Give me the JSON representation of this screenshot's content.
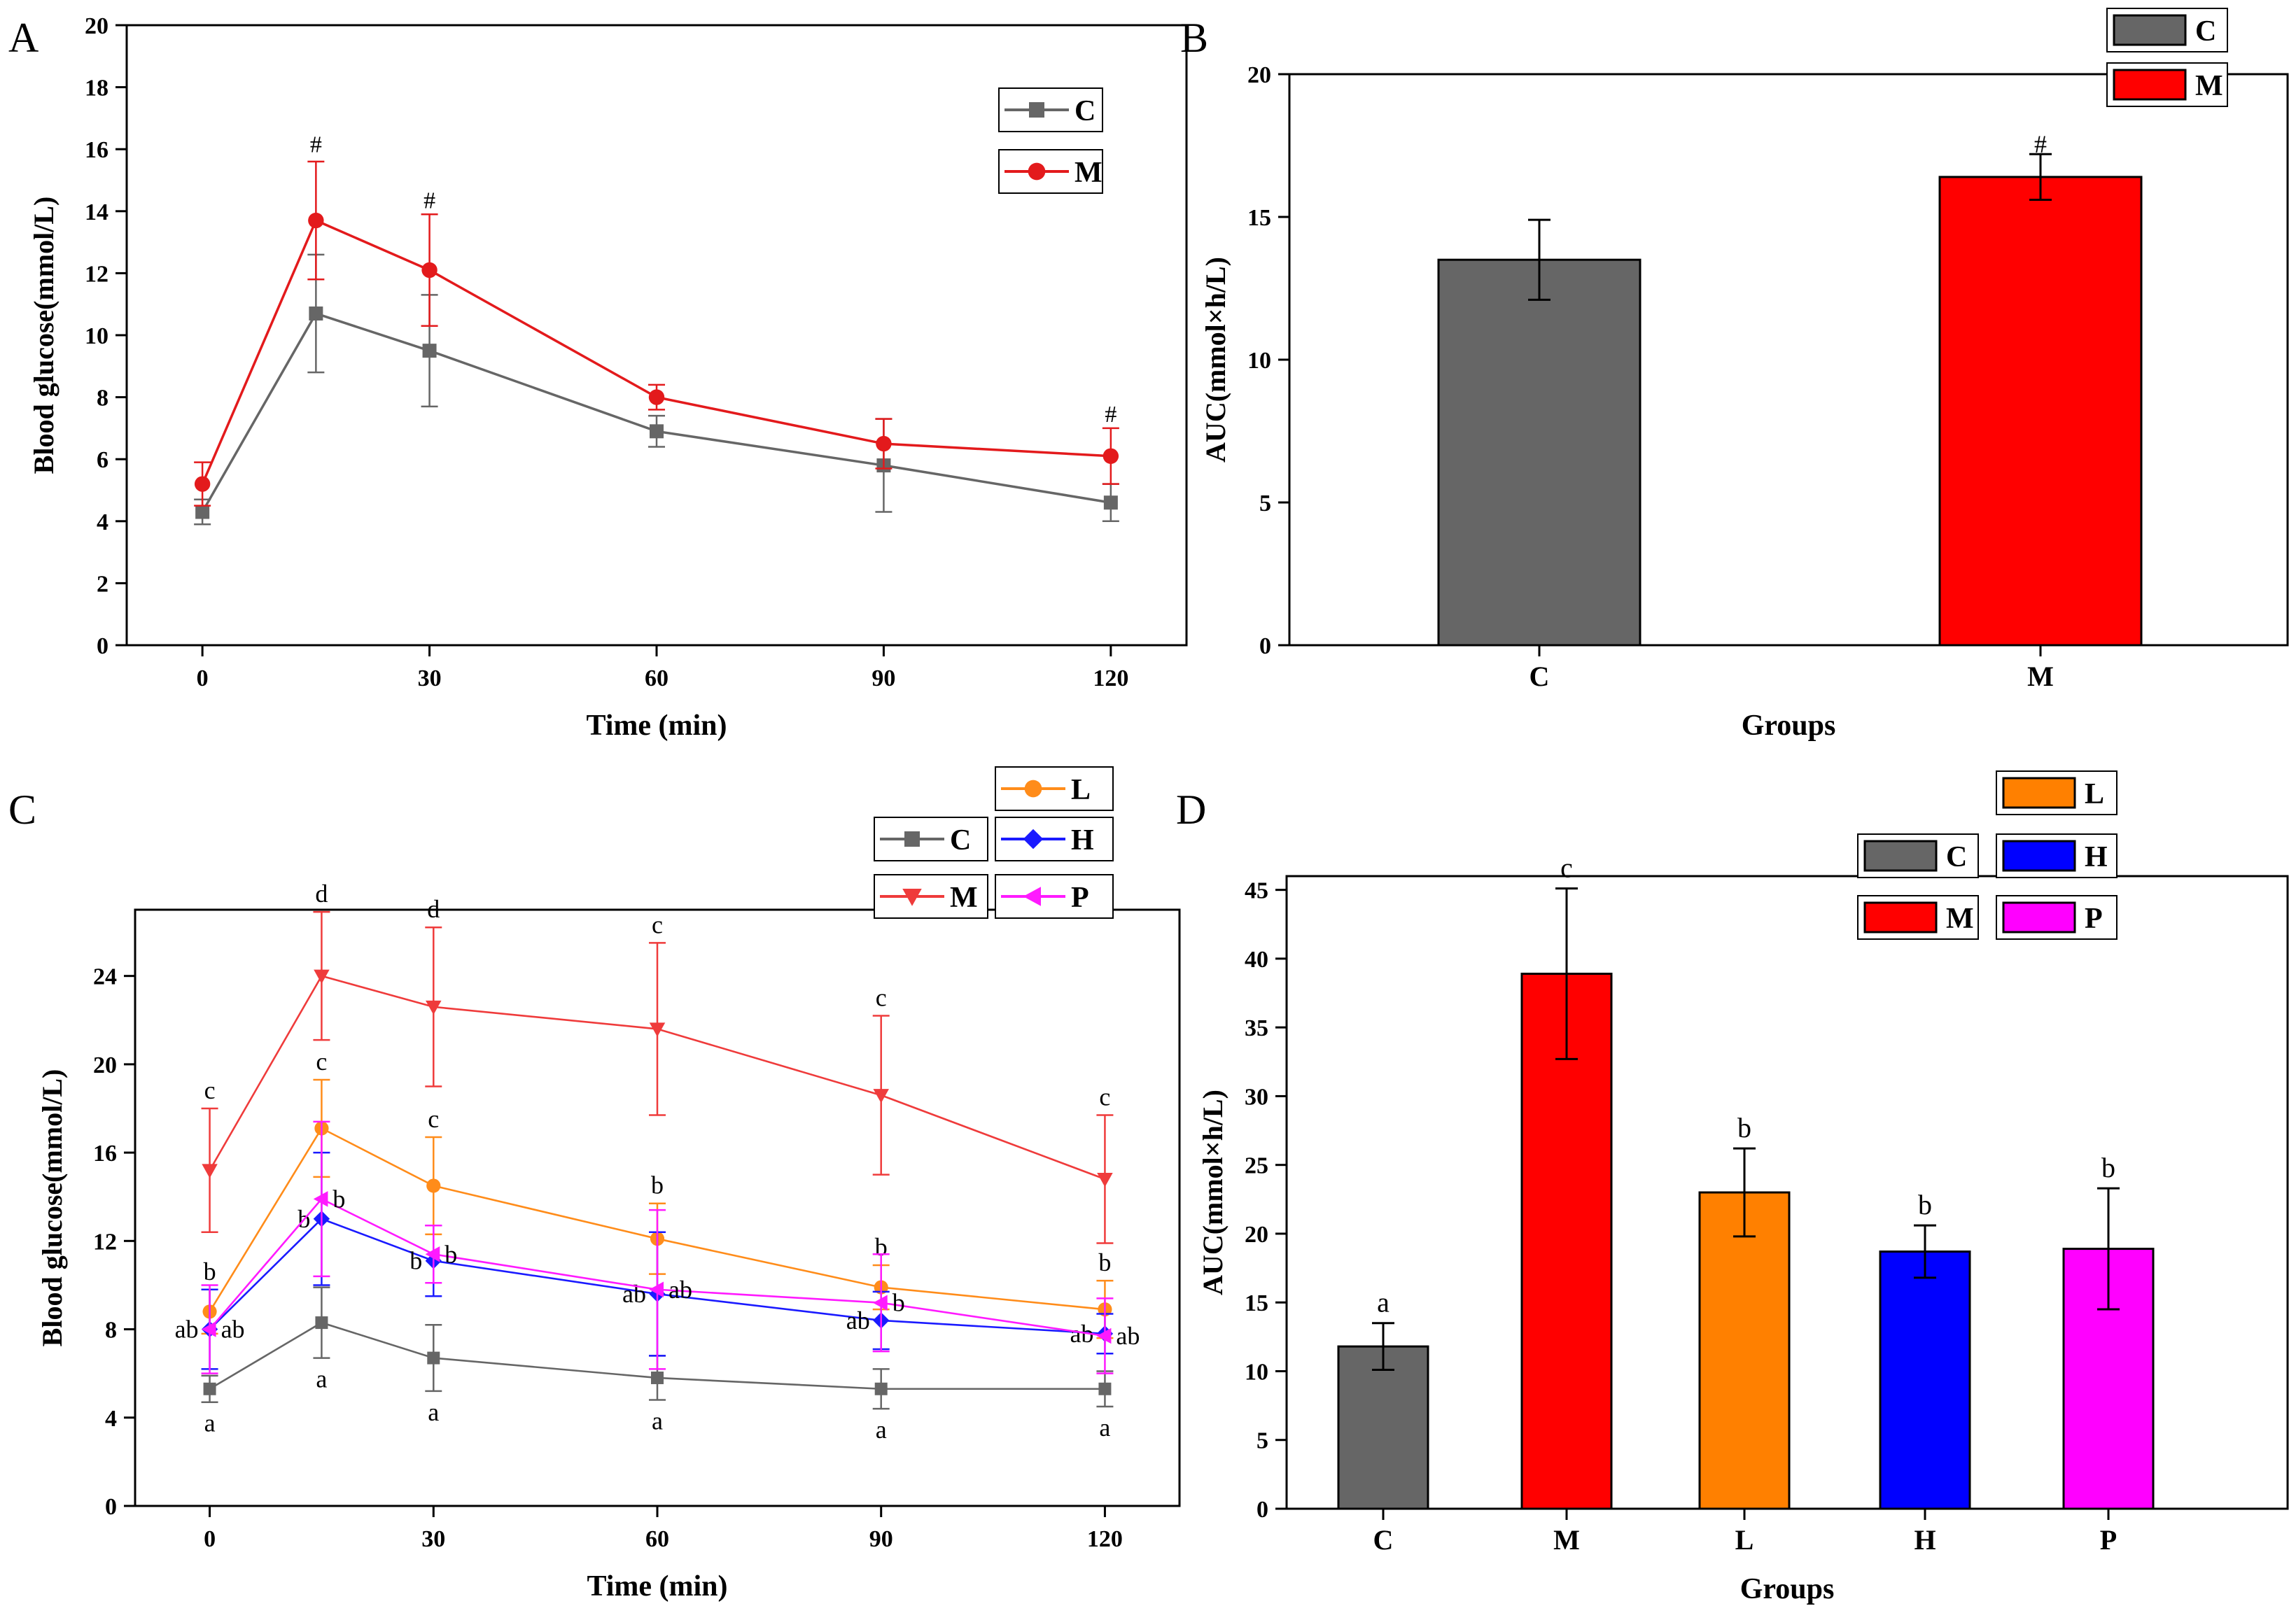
{
  "figure": {
    "panels": [
      "A",
      "B",
      "C",
      "D"
    ]
  },
  "chart_data": [
    {
      "panel": "A",
      "type": "line",
      "xlabel": "Time (min)",
      "ylabel": "Blood glucose(mmol/L)",
      "xlim": [
        -10,
        130
      ],
      "ylim": [
        0,
        20
      ],
      "xticks": [
        "0",
        "30",
        "60",
        "90",
        "120"
      ],
      "yticks": [
        "0",
        "2",
        "4",
        "6",
        "8",
        "10",
        "12",
        "14",
        "16",
        "18",
        "20"
      ],
      "x": [
        0,
        15,
        30,
        60,
        90,
        120
      ],
      "series": [
        {
          "name": "C",
          "color": "#666666",
          "marker": "square",
          "values": [
            4.3,
            10.7,
            9.5,
            6.9,
            5.8,
            4.6
          ],
          "errors": [
            0.4,
            1.9,
            1.8,
            0.5,
            1.5,
            0.6
          ]
        },
        {
          "name": "M",
          "color": "#e31a1c",
          "marker": "circle",
          "values": [
            5.2,
            13.7,
            12.1,
            8.0,
            6.5,
            6.1
          ],
          "errors": [
            0.7,
            1.9,
            1.8,
            0.4,
            0.8,
            0.9
          ]
        }
      ],
      "annotations": [
        {
          "x": 15,
          "y": 15.9,
          "text": "#"
        },
        {
          "x": 30,
          "y": 14.1,
          "text": "#"
        },
        {
          "x": 120,
          "y": 7.2,
          "text": "#"
        }
      ]
    },
    {
      "panel": "B",
      "type": "bar",
      "xlabel": "Groups",
      "ylabel": "AUC(mmol×h/L)",
      "ylim": [
        0,
        20
      ],
      "yticks": [
        "0",
        "5",
        "10",
        "15",
        "20"
      ],
      "categories": [
        "C",
        "M"
      ],
      "values": [
        13.5,
        16.4
      ],
      "errors": [
        1.4,
        0.8
      ],
      "colors": [
        "#666666",
        "#ff0000"
      ],
      "annotations": [
        {
          "category": "M",
          "text": "#"
        }
      ]
    },
    {
      "panel": "C",
      "type": "line",
      "xlabel": "Time (min)",
      "ylabel": "Blood glucose(mmol/L)",
      "xlim": [
        -10,
        130
      ],
      "ylim": [
        0,
        27
      ],
      "xticks": [
        "0",
        "30",
        "60",
        "90",
        "120"
      ],
      "yticks": [
        "0",
        "4",
        "8",
        "12",
        "16",
        "20",
        "24"
      ],
      "x": [
        0,
        15,
        30,
        60,
        90,
        120
      ],
      "series": [
        {
          "name": "C",
          "color": "#666666",
          "marker": "square",
          "values": [
            5.3,
            8.3,
            6.7,
            5.8,
            5.3,
            5.3
          ],
          "errors": [
            0.6,
            1.6,
            1.5,
            1.0,
            0.9,
            0.8
          ],
          "labels": [
            "a",
            "a",
            "a",
            "a",
            "a",
            "a"
          ],
          "label_pos": "below"
        },
        {
          "name": "M",
          "color": "#ef3b3b",
          "marker": "triangle-down",
          "values": [
            15.2,
            24.0,
            22.6,
            21.6,
            18.6,
            14.8
          ],
          "errors": [
            2.8,
            2.9,
            3.6,
            3.9,
            3.6,
            2.9
          ],
          "labels": [
            "c",
            "d",
            "d",
            "c",
            "c",
            "c"
          ],
          "label_pos": "above"
        },
        {
          "name": "L",
          "color": "#ff8c1a",
          "marker": "circle",
          "values": [
            8.8,
            17.1,
            14.5,
            12.1,
            9.9,
            8.9
          ],
          "errors": [
            1.0,
            2.2,
            2.2,
            1.6,
            1.0,
            1.3
          ],
          "labels": [
            "b",
            "c",
            "c",
            "b",
            "b",
            "b"
          ],
          "label_pos": "above"
        },
        {
          "name": "H",
          "color": "#1a1aff",
          "marker": "diamond",
          "values": [
            8.0,
            13.0,
            11.1,
            9.6,
            8.4,
            7.8
          ],
          "errors": [
            1.8,
            3.0,
            1.6,
            2.8,
            1.3,
            0.9
          ],
          "labels": [
            "ab",
            "b",
            "b",
            "ab",
            "ab",
            "ab"
          ],
          "label_pos": "left"
        },
        {
          "name": "P",
          "color": "#ff1aff",
          "marker": "triangle-left",
          "values": [
            8.0,
            13.9,
            11.4,
            9.8,
            9.2,
            7.7
          ],
          "errors": [
            2.0,
            3.5,
            1.3,
            3.6,
            2.2,
            1.7
          ],
          "labels": [
            "ab",
            "b",
            "b",
            "ab",
            "b",
            "ab"
          ],
          "label_pos": "right"
        }
      ]
    },
    {
      "panel": "D",
      "type": "bar",
      "xlabel": "Groups",
      "ylabel": "AUC(mmol×h/L)",
      "ylim": [
        0,
        46
      ],
      "yticks": [
        "0",
        "5",
        "10",
        "15",
        "20",
        "25",
        "30",
        "35",
        "40",
        "45"
      ],
      "categories": [
        "C",
        "M",
        "L",
        "H",
        "P"
      ],
      "values": [
        11.8,
        38.9,
        23.0,
        18.7,
        18.9
      ],
      "errors": [
        1.7,
        6.2,
        3.2,
        1.9,
        4.4
      ],
      "colors": [
        "#666666",
        "#ff0000",
        "#ff8000",
        "#0000ff",
        "#ff00ff"
      ],
      "labels": [
        "a",
        "c",
        "b",
        "b",
        "b"
      ]
    }
  ]
}
